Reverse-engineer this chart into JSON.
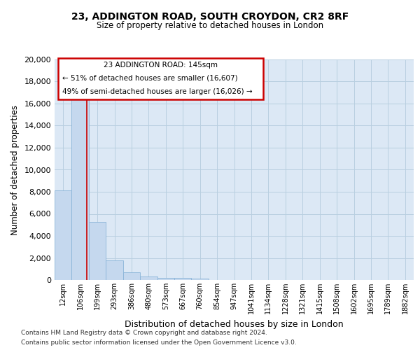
{
  "title_line1": "23, ADDINGTON ROAD, SOUTH CROYDON, CR2 8RF",
  "title_line2": "Size of property relative to detached houses in London",
  "xlabel": "Distribution of detached houses by size in London",
  "ylabel": "Number of detached properties",
  "bar_color": "#c5d8ee",
  "bar_edge_color": "#8ab4d8",
  "annotation_box_edge": "#cc0000",
  "vline_color": "#cc0000",
  "background_color": "#ffffff",
  "axes_bg_color": "#dce8f5",
  "grid_color": "#b8cfe0",
  "footer_line1": "Contains HM Land Registry data © Crown copyright and database right 2024.",
  "footer_line2": "Contains public sector information licensed under the Open Government Licence v3.0.",
  "annotation_title": "23 ADDINGTON ROAD: 145sqm",
  "annotation_line2": "← 51% of detached houses are smaller (16,607)",
  "annotation_line3": "49% of semi-detached houses are larger (16,026) →",
  "vline_x": 1.38,
  "categories": [
    "12sqm",
    "106sqm",
    "199sqm",
    "293sqm",
    "386sqm",
    "480sqm",
    "573sqm",
    "667sqm",
    "760sqm",
    "854sqm",
    "947sqm",
    "1041sqm",
    "1134sqm",
    "1228sqm",
    "1321sqm",
    "1415sqm",
    "1508sqm",
    "1602sqm",
    "1695sqm",
    "1789sqm",
    "1882sqm"
  ],
  "values": [
    8100,
    16500,
    5300,
    1750,
    700,
    310,
    200,
    165,
    130,
    0,
    0,
    0,
    0,
    0,
    0,
    0,
    0,
    0,
    0,
    0,
    0
  ],
  "ylim": [
    0,
    20000
  ],
  "yticks": [
    0,
    2000,
    4000,
    6000,
    8000,
    10000,
    12000,
    14000,
    16000,
    18000,
    20000
  ]
}
